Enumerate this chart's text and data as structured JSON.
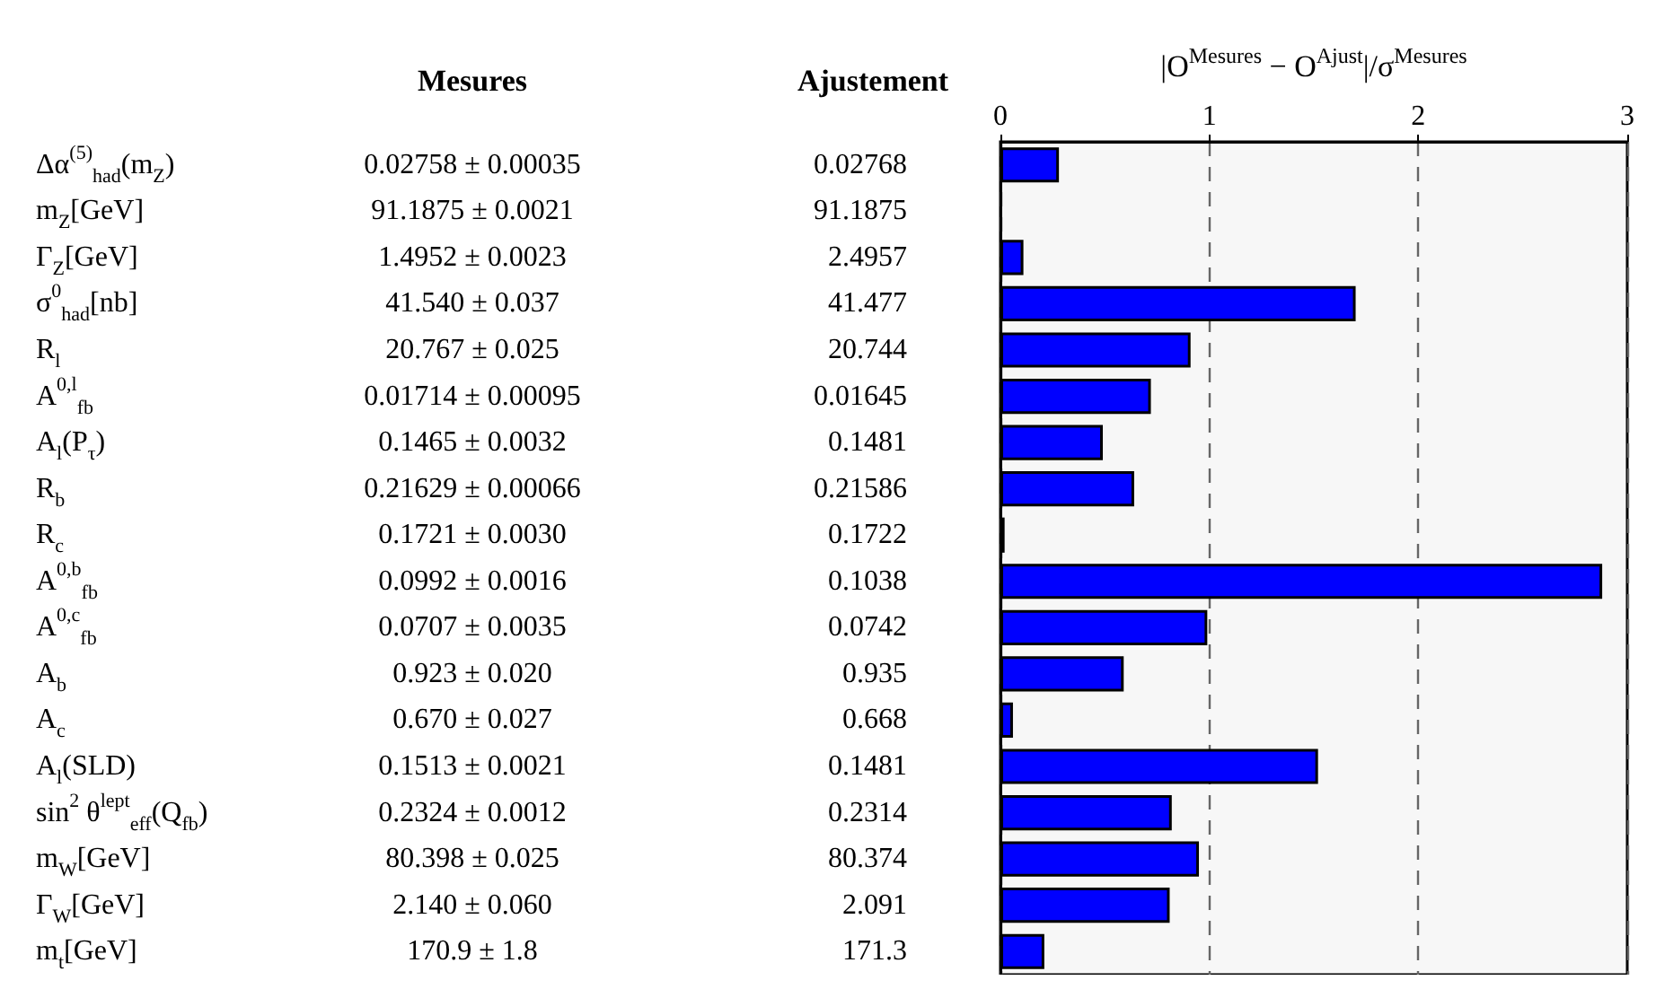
{
  "chart_data": {
    "type": "bar",
    "orientation": "horizontal",
    "x2label": "|O$^{Mesures}$ − O$^{Ajust}$|/σ$^{Mesures}$",
    "categories": [
      "Δα$^{(5)}$$_{had}$(m$_{Z}$)",
      "m$_{Z}$[GeV]",
      "Γ$_{Z}$[GeV]",
      "σ$^{0}$$_{had}$[nb]",
      "R$_{l}$",
      "A$^{0,l}$$_{fb}$",
      "A$_{l}$(P$_{τ}$)",
      "R$_{b}$",
      "R$_{c}$",
      "A$^{0,b}$$_{fb}$",
      "A$^{0,c}$$_{fb}$",
      "A$_{b}$",
      "A$_{c}$",
      "A$_{l}$(SLD)",
      "sin$^{2}$ θ$^{lept}$$_{eff}$(Q$_{fb}$)",
      "m$_{W}$[GeV]",
      "Γ$_{W}$[GeV]",
      "m$_{t}$[GeV]"
    ],
    "series": [
      {
        "axis": "x2",
        "color": "#0000ff",
        "values": [
          0.28,
          0.0,
          0.11,
          1.7,
          0.91,
          0.72,
          0.49,
          0.64,
          0.02,
          2.88,
          0.99,
          0.59,
          0.06,
          1.52,
          0.82,
          0.95,
          0.81,
          0.21
        ]
      }
    ],
    "x2lim": [
      0,
      3
    ],
    "x2ticks": [
      0,
      1,
      2,
      3
    ],
    "grid": "x",
    "annotations": [
      "Mesures",
      "Ajustement",
      "0.02758 ± 0.00035",
      "91.1875 ± 0.0021",
      "1.4952 ± 0.0023",
      "41.540 ± 0.037",
      "20.767 ± 0.025",
      "0.01714 ± 0.00095",
      "0.1465 ± 0.0032",
      "0.21629 ± 0.00066",
      "0.1721 ± 0.0030",
      "0.0992 ± 0.0016",
      "0.0707 ± 0.0035",
      "0.923 ± 0.020",
      "0.670 ± 0.027",
      "0.1513 ± 0.0021",
      "0.2324 ± 0.0012",
      "80.398 ± 0.025",
      "2.140 ± 0.060",
      "170.9 ± 1.8",
      "0.02768",
      "91.1875",
      "2.4957",
      "41.477",
      "20.744",
      "0.01645",
      "0.1481",
      "0.21586",
      "0.1722",
      "0.1038",
      "0.0742",
      "0.935",
      "0.668",
      "0.1481",
      "0.2314",
      "80.374",
      "2.091",
      "171.3"
    ]
  }
}
